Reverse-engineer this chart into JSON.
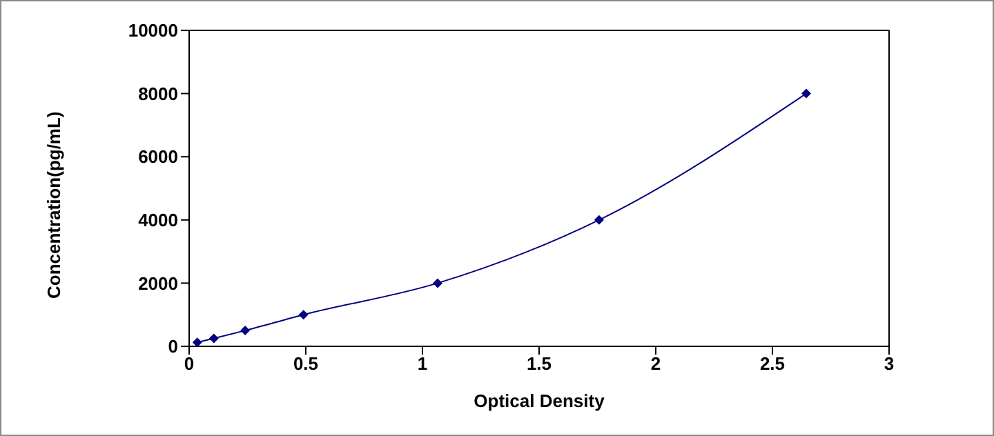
{
  "chart_data": {
    "type": "line",
    "xlabel": "Optical Density",
    "ylabel": "Concentration(pg/mL)",
    "x": [
      0.035,
      0.106,
      0.24,
      0.49,
      1.065,
      1.757,
      2.645
    ],
    "series": [
      {
        "color": "#000080",
        "values": [
          125,
          250,
          500,
          1000,
          2000,
          4000,
          8000
        ]
      }
    ],
    "xlim": [
      0,
      3
    ],
    "xticks": [
      0,
      0.5,
      1,
      1.5,
      2,
      2.5,
      3
    ],
    "ylim": [
      0,
      10000
    ],
    "yticks": [
      0,
      2000,
      4000,
      6000,
      8000,
      10000
    ],
    "marker": "diamond",
    "line_style": "solid"
  }
}
